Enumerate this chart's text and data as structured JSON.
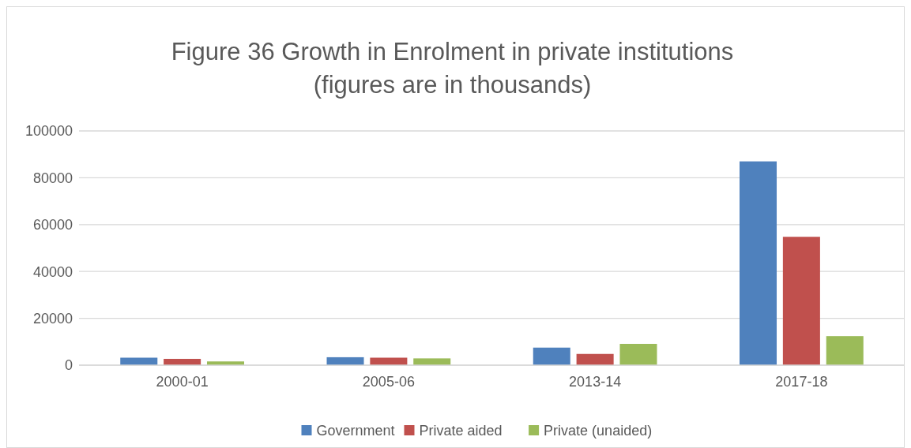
{
  "chart_data": {
    "type": "bar",
    "title": "Figure 36 Growth in Enrolment in private institutions\n(figures are in thousands)",
    "categories": [
      "2000-01",
      "2005-06",
      "2013-14",
      "2017-18"
    ],
    "series": [
      {
        "name": "Government",
        "color": "#4f81bd",
        "values": [
          3200,
          3400,
          7500,
          87000
        ]
      },
      {
        "name": "Private aided",
        "color": "#c0504d",
        "values": [
          2700,
          3200,
          4800,
          54800
        ]
      },
      {
        "name": "Private (unaided)",
        "color": "#9bbb59",
        "values": [
          1600,
          2900,
          9100,
          12400
        ]
      }
    ],
    "ylim": [
      0,
      100000
    ],
    "yticks": [
      0,
      20000,
      40000,
      60000,
      80000,
      100000
    ],
    "grid": "y",
    "legend": "bottom"
  }
}
